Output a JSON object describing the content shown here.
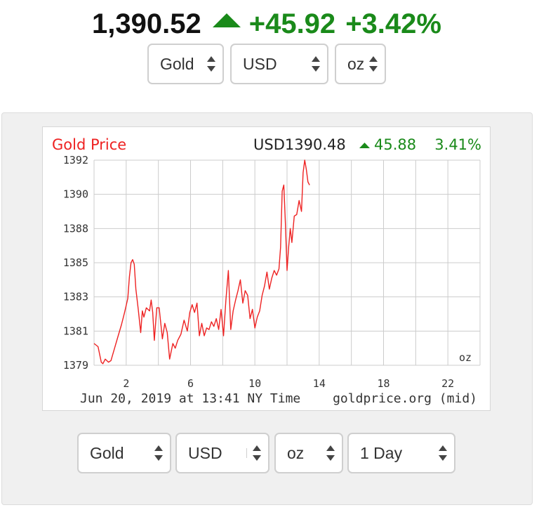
{
  "ticker": {
    "price": "1,390.52",
    "change": "+45.92",
    "change_pct": "+3.42%",
    "direction_icon": "up-arrow-icon",
    "up_color": "#1a8a1a"
  },
  "top_selectors": {
    "metal": "Gold",
    "currency": "USD",
    "unit": "oz"
  },
  "bottom_selectors": {
    "metal": "Gold",
    "currency": "USD",
    "unit": "oz",
    "period": "1 Day"
  },
  "chart_data": {
    "type": "line",
    "title": "Gold Price",
    "header_currency_price": "USD1390.48",
    "header_change": "45.88",
    "header_change_pct": "3.41%",
    "unit_label": "oz",
    "timestamp": "Jun 20, 2019 at 13:41 NY Time",
    "source": "goldprice.org (mid)",
    "line_color": "#ee2222",
    "x_ticks": [
      2,
      6,
      10,
      14,
      18,
      22
    ],
    "xlim": [
      0,
      24
    ],
    "y_ticks": [
      "1392",
      "1390",
      "1388",
      "1385",
      "1383",
      "1381",
      "1379"
    ],
    "ylim": [
      1378.9,
      1392.1
    ],
    "grid": true,
    "series": [
      {
        "x": [
          0.0,
          0.25,
          0.45,
          0.55,
          0.7,
          0.9,
          1.05,
          1.25,
          1.5,
          1.7,
          1.9,
          2.1,
          2.2,
          2.3,
          2.4,
          2.5,
          2.6,
          2.75,
          2.9,
          3.0,
          3.1,
          3.25,
          3.45,
          3.55,
          3.65,
          3.75,
          3.9,
          4.05,
          4.25,
          4.4,
          4.55,
          4.7,
          4.9,
          5.05,
          5.2,
          5.4,
          5.6,
          5.8,
          5.95,
          6.1,
          6.25,
          6.4,
          6.55,
          6.7,
          6.85,
          7.0,
          7.15,
          7.3,
          7.45,
          7.6,
          7.75,
          7.9,
          8.05,
          8.2,
          8.35,
          8.5,
          8.65,
          8.8,
          8.95,
          9.1,
          9.25,
          9.4,
          9.55,
          9.7,
          9.85,
          10.0,
          10.15,
          10.3,
          10.45,
          10.6,
          10.75,
          10.9,
          11.05,
          11.2,
          11.35,
          11.5,
          11.6,
          11.7,
          11.8,
          11.9,
          12.0,
          12.1,
          12.2,
          12.3,
          12.45,
          12.6,
          12.75,
          12.9,
          13.0,
          13.1,
          13.2,
          13.3,
          13.4
        ],
        "y": [
          1380.3,
          1380.1,
          1379.1,
          1379.0,
          1379.3,
          1379.1,
          1379.2,
          1379.9,
          1380.8,
          1381.5,
          1382.3,
          1383.2,
          1384.6,
          1385.5,
          1385.7,
          1385.4,
          1383.8,
          1382.5,
          1381.0,
          1382.4,
          1382.0,
          1382.6,
          1382.4,
          1383.1,
          1382.3,
          1380.5,
          1382.6,
          1382.6,
          1380.6,
          1381.6,
          1381.0,
          1379.3,
          1380.3,
          1380.0,
          1380.5,
          1380.9,
          1381.8,
          1381.1,
          1382.3,
          1382.8,
          1382.3,
          1382.9,
          1380.8,
          1381.6,
          1380.8,
          1381.3,
          1381.2,
          1381.7,
          1381.4,
          1381.9,
          1381.2,
          1382.5,
          1380.8,
          1383.1,
          1385.0,
          1381.2,
          1382.4,
          1383.1,
          1383.7,
          1384.4,
          1382.9,
          1383.7,
          1383.4,
          1381.9,
          1382.5,
          1381.3,
          1382.0,
          1382.4,
          1383.4,
          1384.0,
          1384.9,
          1383.8,
          1384.5,
          1385.0,
          1384.7,
          1385.1,
          1386.5,
          1390.1,
          1390.5,
          1388.0,
          1385.0,
          1386.5,
          1387.7,
          1386.8,
          1388.5,
          1388.6,
          1389.5,
          1388.8,
          1391.3,
          1392.2,
          1391.5,
          1390.7,
          1390.5
        ]
      }
    ]
  }
}
